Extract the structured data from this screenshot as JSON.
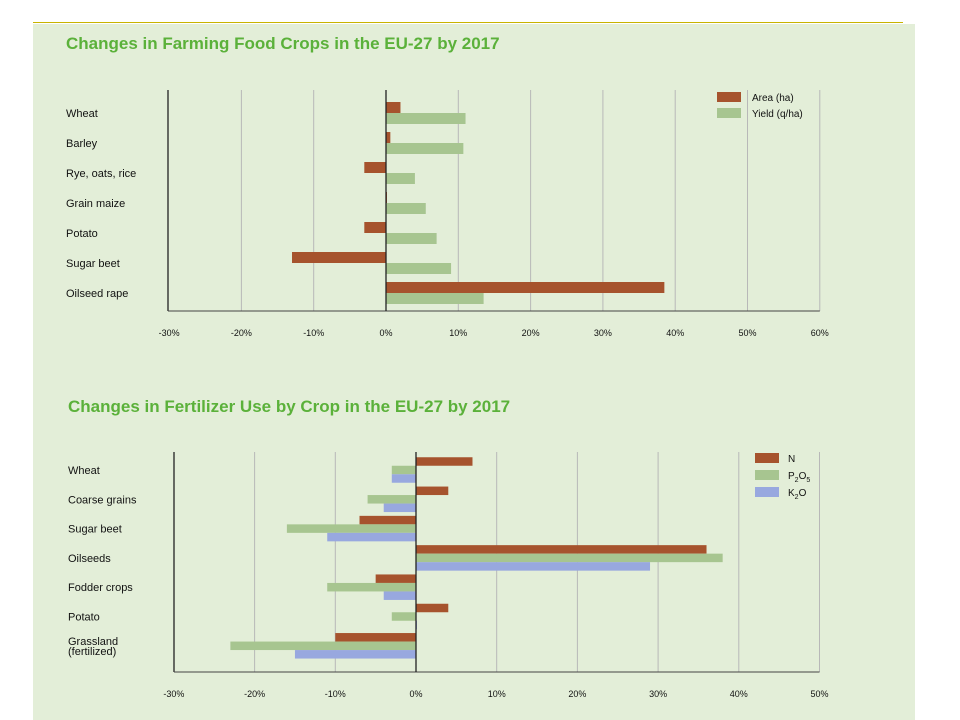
{
  "colors": {
    "brown": "#a6532d",
    "green": "#a7c590",
    "blue": "#98a8df",
    "panel": "#e3eed8",
    "title": "#5bb13a",
    "grid": "#b8b8b8"
  },
  "chart_data": [
    {
      "type": "bar",
      "orientation": "horizontal",
      "title": "Changes in Farming Food Crops in the EU-27 by 2017",
      "categories": [
        "Wheat",
        "Barley",
        "Rye, oats, rice",
        "Grain maize",
        "Potato",
        "Sugar beet",
        "Oilseed rape"
      ],
      "series": [
        {
          "name": "Area (ha)",
          "color": "#a6532d",
          "values": [
            2,
            0.6,
            -3,
            0,
            -3,
            -13,
            38.5
          ]
        },
        {
          "name": "Yield (q/ha)",
          "color": "#a7c590",
          "values": [
            11,
            10.7,
            4,
            5.5,
            7,
            9,
            13.5
          ]
        }
      ],
      "xlim": [
        -30,
        60
      ],
      "xticks": [
        "-30%",
        "-20%",
        "-10%",
        "0%",
        "10%",
        "20%",
        "30%",
        "40%",
        "50%",
        "60%"
      ],
      "grid": true,
      "legend": "top-right"
    },
    {
      "type": "bar",
      "orientation": "horizontal",
      "title": "Changes in Fertilizer Use by Crop in the EU-27 by 2017",
      "categories": [
        [
          "Wheat"
        ],
        [
          "Coarse grains"
        ],
        [
          "Sugar beet"
        ],
        [
          "Oilseeds"
        ],
        [
          "Fodder crops"
        ],
        [
          "Potato"
        ],
        [
          "Grassland",
          "(fertilized)"
        ]
      ],
      "series": [
        {
          "name": "N",
          "color": "#a6532d",
          "values": [
            7,
            4,
            -7,
            36,
            -5,
            4,
            -10
          ]
        },
        {
          "name": "P2O5",
          "label_base": "P",
          "label_sub1": "2",
          "label_mid": "O",
          "label_sub2": "5",
          "color": "#a7c590",
          "values": [
            -3,
            -6,
            -16,
            38,
            -11,
            -3,
            -23
          ]
        },
        {
          "name": "K2O",
          "label_base": "K",
          "label_sub1": "2",
          "label_mid": "O",
          "label_sub2": "",
          "color": "#98a8df",
          "values": [
            -3,
            -4,
            -11,
            29,
            -4,
            0,
            -15
          ]
        }
      ],
      "xlim": [
        -30,
        50
      ],
      "xticks": [
        "-30%",
        "-20%",
        "-10%",
        "0%",
        "10%",
        "20%",
        "30%",
        "40%",
        "50%"
      ],
      "grid": true,
      "legend": "top-right"
    }
  ]
}
